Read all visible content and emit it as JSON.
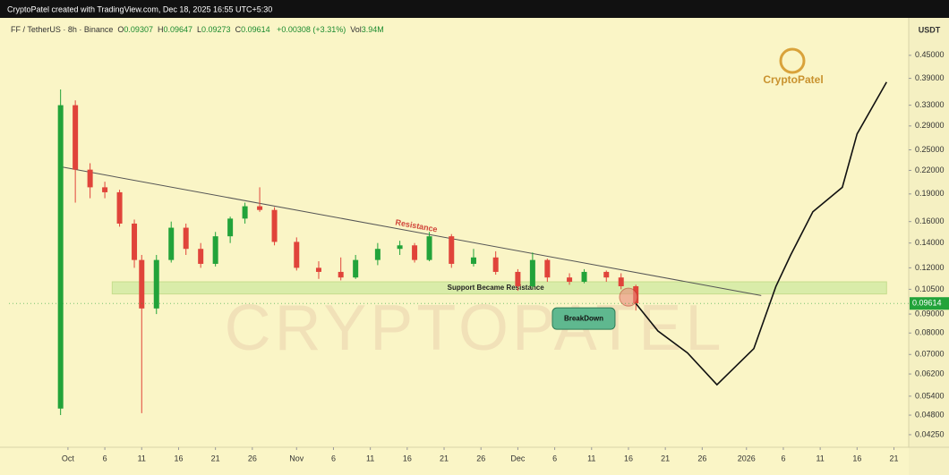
{
  "header": {
    "attribution": "CryptoPatel created with TradingView.com, Dec 18, 2025 16:55 UTC+5:30"
  },
  "chart_data": {
    "type": "candlestick",
    "symbol": "FF / TetherUS · 8h · Binance",
    "legend": [
      {
        "label": "O",
        "value": 0.09307
      },
      {
        "label": "H",
        "value": 0.09647
      },
      {
        "label": "L",
        "value": 0.09273
      },
      {
        "label": "C",
        "value": 0.09614
      }
    ],
    "change": "+0.00308 (+3.31%)",
    "volume": {
      "label": "Vol",
      "value": "3.94M"
    },
    "currency": "USDT",
    "watermark": "CryptoPatel",
    "watermark_large": "CRYPTOPATEL",
    "up_color": "#22a33a",
    "down_color": "#e0443a",
    "x": [
      "2025-09-30",
      "2025-10-02",
      "2025-10-04",
      "2025-10-06",
      "2025-10-08",
      "2025-10-10",
      "2025-10-11",
      "2025-10-13",
      "2025-10-15",
      "2025-10-17",
      "2025-10-19",
      "2025-10-21",
      "2025-10-23",
      "2025-10-25",
      "2025-10-27",
      "2025-10-29",
      "2025-11-01",
      "2025-11-04",
      "2025-11-07",
      "2025-11-09",
      "2025-11-12",
      "2025-11-15",
      "2025-11-17",
      "2025-11-19",
      "2025-11-22",
      "2025-11-25",
      "2025-11-28",
      "2025-12-01",
      "2025-12-03",
      "2025-12-05",
      "2025-12-08",
      "2025-12-10",
      "2025-12-13",
      "2025-12-15",
      "2025-12-17"
    ],
    "open": [
      0.05,
      0.33,
      0.221,
      0.198,
      0.192,
      0.158,
      0.126,
      0.0932,
      0.126,
      0.154,
      0.135,
      0.123,
      0.146,
      0.163,
      0.176,
      0.172,
      0.141,
      0.12,
      0.117,
      0.113,
      0.126,
      0.135,
      0.138,
      0.126,
      0.146,
      0.123,
      0.128,
      0.117,
      0.107,
      0.126,
      0.113,
      0.11,
      0.117,
      0.113,
      0.107
    ],
    "high": [
      0.364,
      0.34,
      0.23,
      0.205,
      0.195,
      0.162,
      0.13,
      0.13,
      0.16,
      0.158,
      0.14,
      0.15,
      0.165,
      0.18,
      0.198,
      0.175,
      0.145,
      0.125,
      0.128,
      0.13,
      0.14,
      0.142,
      0.14,
      0.15,
      0.148,
      0.135,
      0.133,
      0.119,
      0.132,
      0.127,
      0.116,
      0.119,
      0.118,
      0.116,
      0.108
    ],
    "low": [
      0.048,
      0.18,
      0.185,
      0.185,
      0.155,
      0.12,
      0.0486,
      0.09,
      0.124,
      0.13,
      0.12,
      0.121,
      0.14,
      0.158,
      0.17,
      0.138,
      0.118,
      0.112,
      0.111,
      0.112,
      0.122,
      0.13,
      0.124,
      0.125,
      0.12,
      0.121,
      0.115,
      0.104,
      0.106,
      0.11,
      0.108,
      0.109,
      0.11,
      0.105,
      0.092
    ],
    "close": [
      0.33,
      0.221,
      0.198,
      0.192,
      0.158,
      0.126,
      0.0932,
      0.126,
      0.154,
      0.135,
      0.123,
      0.146,
      0.163,
      0.176,
      0.172,
      0.141,
      0.12,
      0.117,
      0.113,
      0.126,
      0.135,
      0.138,
      0.126,
      0.146,
      0.123,
      0.128,
      0.117,
      0.107,
      0.126,
      0.113,
      0.11,
      0.117,
      0.113,
      0.107,
      0.09614
    ],
    "trendline": {
      "x": [
        "2025-09-30",
        "2026-01-03"
      ],
      "values": [
        0.225,
        0.101
      ]
    },
    "resistance_label": "Resistance",
    "zone": {
      "label": "Support Became Resistance",
      "x": [
        "2025-10-07",
        "2026-01-20"
      ],
      "values": [
        0.102,
        0.11
      ]
    },
    "breakdown": {
      "label": "BreakDown",
      "x": "2025-12-16",
      "value": 0.1
    },
    "projection": {
      "x": [
        "2025-12-17",
        "2025-12-20",
        "2025-12-24",
        "2025-12-28",
        "2026-01-02",
        "2026-01-05",
        "2026-01-07",
        "2026-01-10",
        "2026-01-14",
        "2026-01-16",
        "2026-01-20"
      ],
      "values": [
        0.09614,
        0.081,
        0.0707,
        0.058,
        0.0726,
        0.107,
        0.13,
        0.17,
        0.198,
        0.276,
        0.381
      ]
    },
    "log": true,
    "ylim": [
      0.0393,
      0.568
    ],
    "yticks": [
      {
        "value": 0.45,
        "label": "0.45000"
      },
      {
        "value": 0.39,
        "label": "0.39000"
      },
      {
        "value": 0.33,
        "label": "0.33000"
      },
      {
        "value": 0.29,
        "label": "0.29000"
      },
      {
        "value": 0.25,
        "label": "0.25000"
      },
      {
        "value": 0.22,
        "label": "0.22000"
      },
      {
        "value": 0.19,
        "label": "0.19000"
      },
      {
        "value": 0.16,
        "label": "0.16000"
      },
      {
        "value": 0.14,
        "label": "0.14000"
      },
      {
        "value": 0.12,
        "label": "0.12000"
      },
      {
        "value": 0.105,
        "label": "0.10500"
      },
      {
        "value": 0.09,
        "label": "0.09000"
      },
      {
        "value": 0.08,
        "label": "0.08000"
      },
      {
        "value": 0.07,
        "label": "0.07000"
      },
      {
        "value": 0.062,
        "label": "0.06200"
      },
      {
        "value": 0.054,
        "label": "0.05400"
      },
      {
        "value": 0.048,
        "label": "0.04800"
      },
      {
        "value": 0.0425,
        "label": "0.04250"
      }
    ],
    "xlim": [
      "2025-09-23",
      "2026-01-23"
    ],
    "xticks": [
      {
        "value": "2025-10-01",
        "label": "Oct"
      },
      {
        "value": "2025-10-06",
        "label": "6"
      },
      {
        "value": "2025-10-11",
        "label": "11"
      },
      {
        "value": "2025-10-16",
        "label": "16"
      },
      {
        "value": "2025-10-21",
        "label": "21"
      },
      {
        "value": "2025-10-26",
        "label": "26"
      },
      {
        "value": "2025-11-01",
        "label": "Nov"
      },
      {
        "value": "2025-11-06",
        "label": "6"
      },
      {
        "value": "2025-11-11",
        "label": "11"
      },
      {
        "value": "2025-11-16",
        "label": "16"
      },
      {
        "value": "2025-11-21",
        "label": "21"
      },
      {
        "value": "2025-11-26",
        "label": "26"
      },
      {
        "value": "2025-12-01",
        "label": "Dec"
      },
      {
        "value": "2025-12-06",
        "label": "6"
      },
      {
        "value": "2025-12-11",
        "label": "11"
      },
      {
        "value": "2025-12-16",
        "label": "16"
      },
      {
        "value": "2025-12-21",
        "label": "21"
      },
      {
        "value": "2025-12-26",
        "label": "26"
      },
      {
        "value": "2026-01-01",
        "label": "2026"
      },
      {
        "value": "2026-01-06",
        "label": "6"
      },
      {
        "value": "2026-01-11",
        "label": "11"
      },
      {
        "value": "2026-01-16",
        "label": "16"
      },
      {
        "value": "2026-01-21",
        "label": "21"
      }
    ]
  }
}
